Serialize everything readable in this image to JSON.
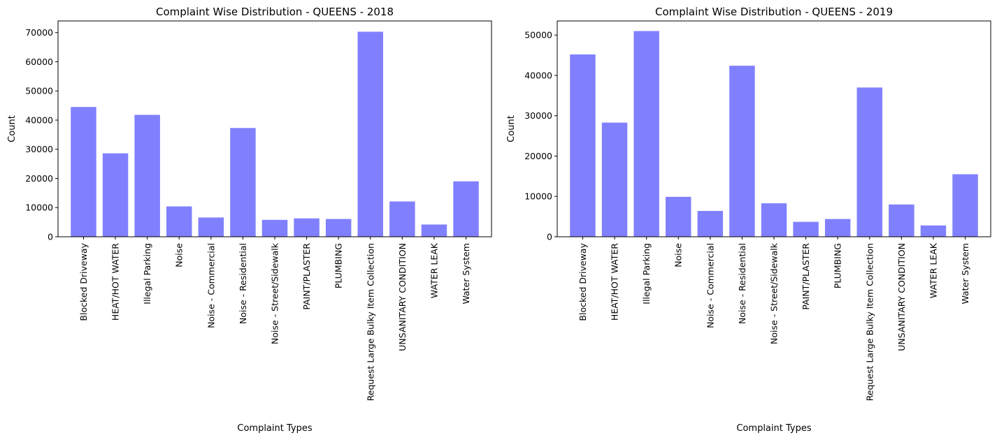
{
  "chart_data": [
    {
      "type": "bar",
      "title": "Complaint Wise Distribution - QUEENS - 2018",
      "xlabel": "Complaint Types",
      "ylabel": "Count",
      "ylim": [
        0,
        74000
      ],
      "yticks": [
        0,
        10000,
        20000,
        30000,
        40000,
        50000,
        60000,
        70000
      ],
      "bar_color": "#8080ff",
      "grid": false,
      "categories": [
        "Blocked Driveway",
        "HEAT/HOT WATER",
        "Illegal Parking",
        "Noise",
        "Noise - Commercial",
        "Noise - Residential",
        "Noise - Street/Sidewalk",
        "PAINT/PLASTER",
        "PLUMBING",
        "Request Large Bulky Item Collection",
        "UNSANITARY CONDITION",
        "WATER LEAK",
        "Water System"
      ],
      "values": [
        44500,
        28600,
        41800,
        10400,
        6600,
        37300,
        5800,
        6300,
        6100,
        70300,
        12100,
        4200,
        19000
      ]
    },
    {
      "type": "bar",
      "title": "Complaint Wise Distribution - QUEENS - 2019",
      "xlabel": "Complaint Types",
      "ylabel": "Count",
      "ylim": [
        0,
        53500
      ],
      "yticks": [
        0,
        10000,
        20000,
        30000,
        40000,
        50000
      ],
      "bar_color": "#8080ff",
      "grid": false,
      "categories": [
        "Blocked Driveway",
        "HEAT/HOT WATER",
        "Illegal Parking",
        "Noise",
        "Noise - Commercial",
        "Noise - Residential",
        "Noise - Street/Sidewalk",
        "PAINT/PLASTER",
        "PLUMBING",
        "Request Large Bulky Item Collection",
        "UNSANITARY CONDITION",
        "WATER LEAK",
        "Water System"
      ],
      "values": [
        45200,
        28300,
        51000,
        9900,
        6400,
        42400,
        8300,
        3700,
        4400,
        37000,
        8000,
        2800,
        15500
      ]
    }
  ]
}
